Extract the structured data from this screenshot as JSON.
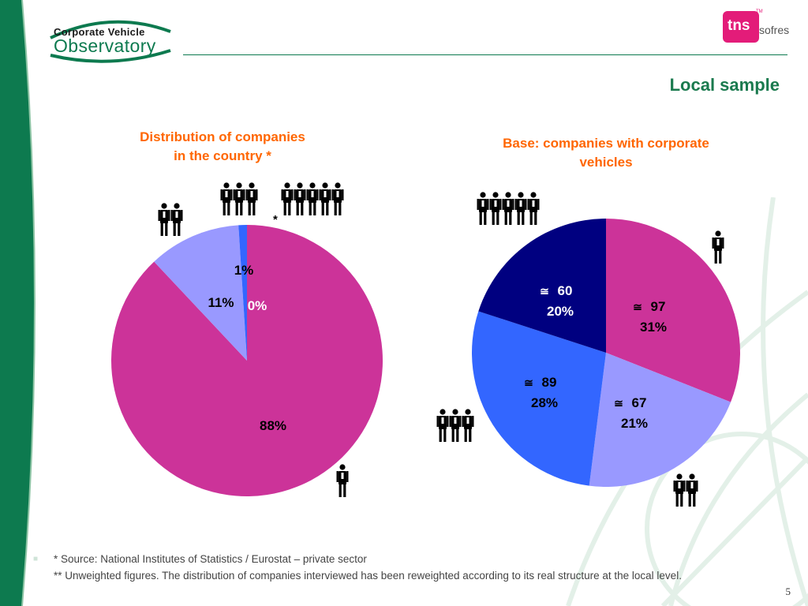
{
  "header": {
    "logo_line1": "Corporate Vehicle",
    "logo_line2": "Observatory",
    "brand": "tns",
    "brand_suffix": "sofres",
    "brand_tm": "TM",
    "page_title": "Local sample"
  },
  "colors": {
    "magenta": "#cc3399",
    "lavender": "#9999ff",
    "blue": "#3366ff",
    "navy": "#000080",
    "green": "#0d7a4f",
    "orange": "#ff6600"
  },
  "chart_data": [
    {
      "type": "pie",
      "title": "Distribution of companies in the country *",
      "title_lines": [
        "Distribution of companies",
        "in the country *"
      ],
      "slices": [
        {
          "label": "88%",
          "value": 88,
          "color": "#cc3399",
          "people_icons": 1
        },
        {
          "label": "11%",
          "value": 11,
          "color": "#9999ff",
          "people_icons": 2
        },
        {
          "label": "1%",
          "value": 1,
          "color": "#3366ff",
          "people_icons": 3
        },
        {
          "label": "0%",
          "value": 0,
          "color": "#000080",
          "people_icons": 5
        }
      ],
      "icon_note": "*"
    },
    {
      "type": "pie",
      "title": "Base: companies with corporate vehicles",
      "title_lines": [
        "Base: companies with corporate",
        "vehicles"
      ],
      "slices": [
        {
          "count": "97",
          "label": "31%",
          "value": 31,
          "color": "#cc3399",
          "people_icons": 1
        },
        {
          "count": "67",
          "label": "21%",
          "value": 21,
          "color": "#9999ff",
          "people_icons": 2
        },
        {
          "count": "89",
          "label": "28%",
          "value": 28,
          "color": "#3366ff",
          "people_icons": 3
        },
        {
          "count": "60",
          "label": "20%",
          "value": 20,
          "color": "#000080",
          "people_icons": 5
        }
      ],
      "approx_symbol": "≅"
    }
  ],
  "footer": {
    "note1": "* Source: National Institutes of Statistics / Eurostat – private sector",
    "note2": "** Unweighted figures. The distribution of companies interviewed has been reweighted according to its real structure at the local level.",
    "page_number": "5"
  }
}
